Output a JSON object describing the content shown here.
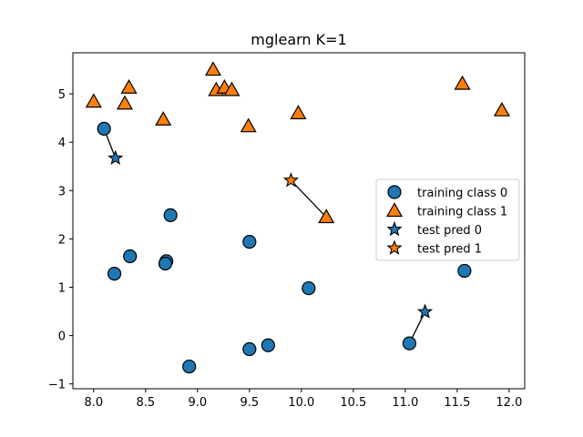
{
  "chart_data": {
    "type": "scatter",
    "title": "mglearn K=1",
    "xlabel": "",
    "ylabel": "",
    "xlim": [
      7.8,
      12.15
    ],
    "ylim": [
      -1.1,
      5.85
    ],
    "xticks": [
      8.0,
      8.5,
      9.0,
      9.5,
      10.0,
      10.5,
      11.0,
      11.5,
      12.0
    ],
    "xtick_labels": [
      "8.0",
      "8.5",
      "9.0",
      "9.5",
      "10.0",
      "10.5",
      "11.0",
      "11.5",
      "12.0"
    ],
    "yticks": [
      -1,
      0,
      1,
      2,
      3,
      4,
      5
    ],
    "ytick_labels": [
      "−1",
      "0",
      "1",
      "2",
      "3",
      "4",
      "5"
    ],
    "grid": false,
    "legend_position": "right",
    "colors": {
      "class0": "#1f77b4",
      "class1": "#ff7f0e",
      "edge": "#000000"
    },
    "series": [
      {
        "name": "training class 0",
        "marker": "circle",
        "color": "#1f77b4",
        "points": [
          [
            8.1,
            4.28
          ],
          [
            8.2,
            1.28
          ],
          [
            8.35,
            1.64
          ],
          [
            8.7,
            1.54
          ],
          [
            8.69,
            1.49
          ],
          [
            8.74,
            2.49
          ],
          [
            8.92,
            -0.64
          ],
          [
            9.5,
            -0.28
          ],
          [
            9.5,
            1.94
          ],
          [
            9.68,
            -0.2
          ],
          [
            10.07,
            0.98
          ],
          [
            11.04,
            -0.16
          ],
          [
            11.57,
            1.34
          ]
        ]
      },
      {
        "name": "training class 1",
        "marker": "triangle",
        "color": "#ff7f0e",
        "points": [
          [
            8.0,
            4.84
          ],
          [
            8.3,
            4.8
          ],
          [
            8.34,
            5.13
          ],
          [
            8.67,
            4.47
          ],
          [
            9.15,
            5.5
          ],
          [
            9.18,
            5.08
          ],
          [
            9.26,
            5.13
          ],
          [
            9.33,
            5.08
          ],
          [
            9.49,
            4.33
          ],
          [
            9.97,
            4.6
          ],
          [
            10.24,
            2.45
          ],
          [
            11.55,
            5.21
          ],
          [
            11.93,
            4.66
          ]
        ]
      },
      {
        "name": "test pred 0",
        "marker": "star",
        "color": "#1f77b4",
        "points": [
          [
            8.21,
            3.67
          ],
          [
            11.19,
            0.49
          ]
        ]
      },
      {
        "name": "test pred 1",
        "marker": "star",
        "color": "#ff7f0e",
        "points": [
          [
            9.9,
            3.21
          ]
        ]
      }
    ],
    "neighbor_links": [
      [
        [
          8.21,
          3.67
        ],
        [
          8.1,
          4.28
        ]
      ],
      [
        [
          9.9,
          3.21
        ],
        [
          10.24,
          2.45
        ]
      ],
      [
        [
          11.19,
          0.49
        ],
        [
          11.04,
          -0.16
        ]
      ]
    ]
  }
}
